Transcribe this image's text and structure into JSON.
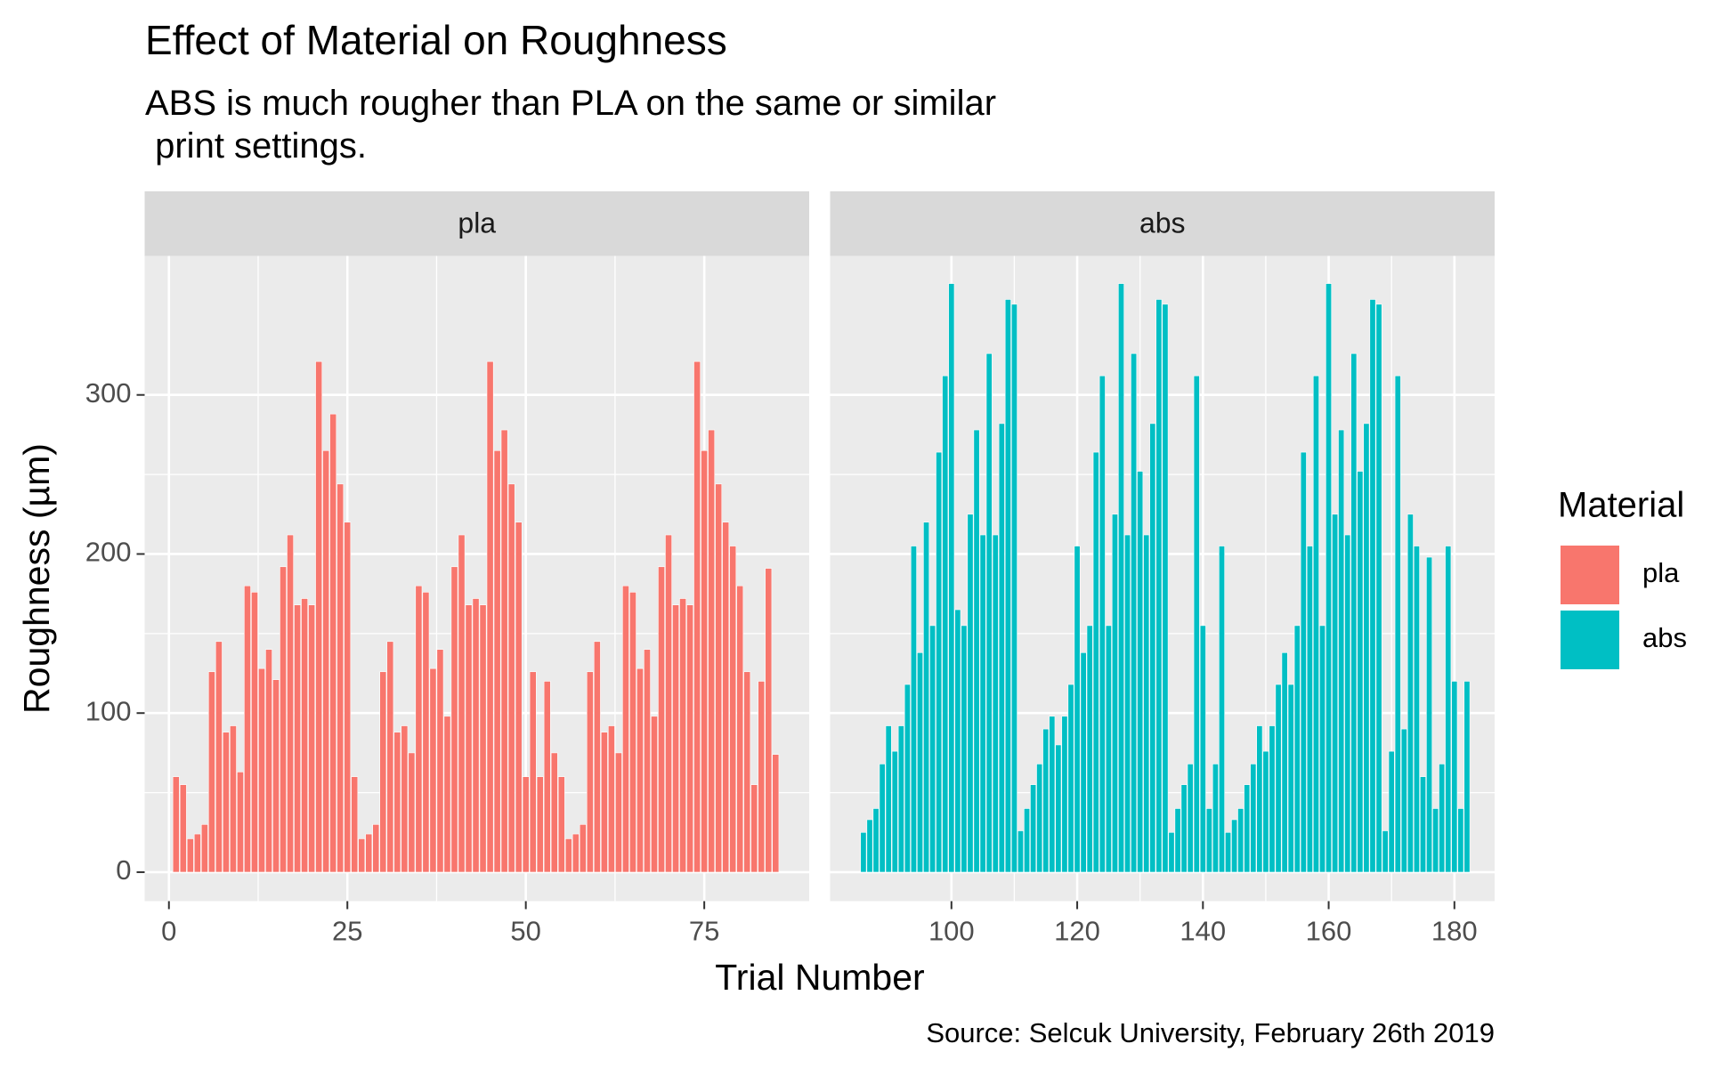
{
  "chart_data": {
    "type": "bar",
    "title": "Effect of Material on Roughness",
    "subtitle": "ABS is much rougher than PLA on the same or similar\n print settings.",
    "caption": "Source: Selcuk University, February 26th 2019",
    "xlabel": "Trial Number",
    "ylabel": "Roughness (µm)",
    "legend_title": "Material",
    "ylim": [
      -18.2,
      387.4
    ],
    "yticks": [
      0,
      100,
      200,
      300
    ],
    "grid": true,
    "facets": [
      {
        "name": "pla",
        "color": "#F8766D",
        "xlim": [
          -3.4,
          89.7
        ],
        "xticks": [
          0,
          25,
          50,
          75
        ],
        "x": [
          1,
          2,
          3,
          4,
          5,
          6,
          7,
          8,
          9,
          10,
          11,
          12,
          13,
          14,
          15,
          16,
          17,
          18,
          19,
          20,
          21,
          22,
          23,
          24,
          25,
          26,
          27,
          28,
          29,
          30,
          31,
          32,
          33,
          34,
          35,
          36,
          37,
          38,
          39,
          40,
          41,
          42,
          43,
          44,
          45,
          46,
          47,
          48,
          49,
          50,
          51,
          52,
          53,
          54,
          55,
          56,
          57,
          58,
          59,
          60,
          61,
          62,
          63,
          64,
          65,
          66,
          67,
          68,
          69,
          70,
          71,
          72,
          73,
          74,
          75,
          76,
          77,
          78,
          79,
          80,
          81,
          82,
          83,
          84,
          85
        ],
        "values": [
          60,
          55,
          21,
          24,
          30,
          126,
          145,
          88,
          92,
          63,
          180,
          176,
          128,
          140,
          121,
          192,
          212,
          168,
          172,
          168,
          321,
          265,
          288,
          244,
          220,
          60,
          21,
          24,
          30,
          126,
          145,
          88,
          92,
          75,
          180,
          176,
          128,
          140,
          98,
          192,
          212,
          168,
          172,
          168,
          321,
          265,
          278,
          244,
          220,
          60,
          126,
          60,
          120,
          75,
          60,
          21,
          24,
          30,
          126,
          145,
          88,
          92,
          75,
          180,
          176,
          128,
          140,
          98,
          192,
          212,
          168,
          172,
          168,
          321,
          265,
          278,
          244,
          220,
          205,
          180,
          126,
          55,
          120,
          191,
          74
        ]
      },
      {
        "name": "abs",
        "color": "#00BFC4",
        "xlim": [
          80.7,
          186.4
        ],
        "xticks": [
          100,
          120,
          140,
          160,
          180
        ],
        "x": [
          86,
          87,
          88,
          89,
          90,
          91,
          92,
          93,
          94,
          95,
          96,
          97,
          98,
          99,
          100,
          101,
          102,
          103,
          104,
          105,
          106,
          107,
          108,
          109,
          110,
          111,
          112,
          113,
          114,
          115,
          116,
          117,
          118,
          119,
          120,
          121,
          122,
          123,
          124,
          125,
          126,
          127,
          128,
          129,
          130,
          131,
          132,
          133,
          134,
          135,
          136,
          137,
          138,
          139,
          140,
          141,
          142,
          143,
          144,
          145,
          146,
          147,
          148,
          149,
          150,
          151,
          152,
          153,
          154,
          155,
          156,
          157,
          158,
          159,
          160,
          161,
          162,
          163,
          164,
          165,
          166,
          167,
          168,
          169,
          170,
          171,
          172,
          173,
          174,
          175,
          176,
          177,
          178,
          179,
          180,
          181,
          182
        ],
        "values": [
          25,
          33,
          40,
          68,
          92,
          76,
          92,
          118,
          205,
          138,
          220,
          155,
          264,
          312,
          370,
          165,
          155,
          225,
          278,
          212,
          326,
          212,
          282,
          360,
          357,
          26,
          40,
          55,
          68,
          90,
          98,
          80,
          98,
          118,
          205,
          138,
          155,
          264,
          312,
          155,
          225,
          370,
          212,
          326,
          252,
          212,
          282,
          360,
          357,
          25,
          40,
          55,
          68,
          312,
          155,
          40,
          68,
          205,
          25,
          33,
          40,
          55,
          68,
          92,
          76,
          92,
          118,
          138,
          118,
          155,
          264,
          205,
          312,
          155,
          370,
          225,
          278,
          212,
          326,
          252,
          282,
          360,
          357,
          26,
          76,
          312,
          90,
          225,
          205,
          60,
          198,
          40,
          68,
          205,
          120,
          40,
          120
        ]
      }
    ]
  }
}
